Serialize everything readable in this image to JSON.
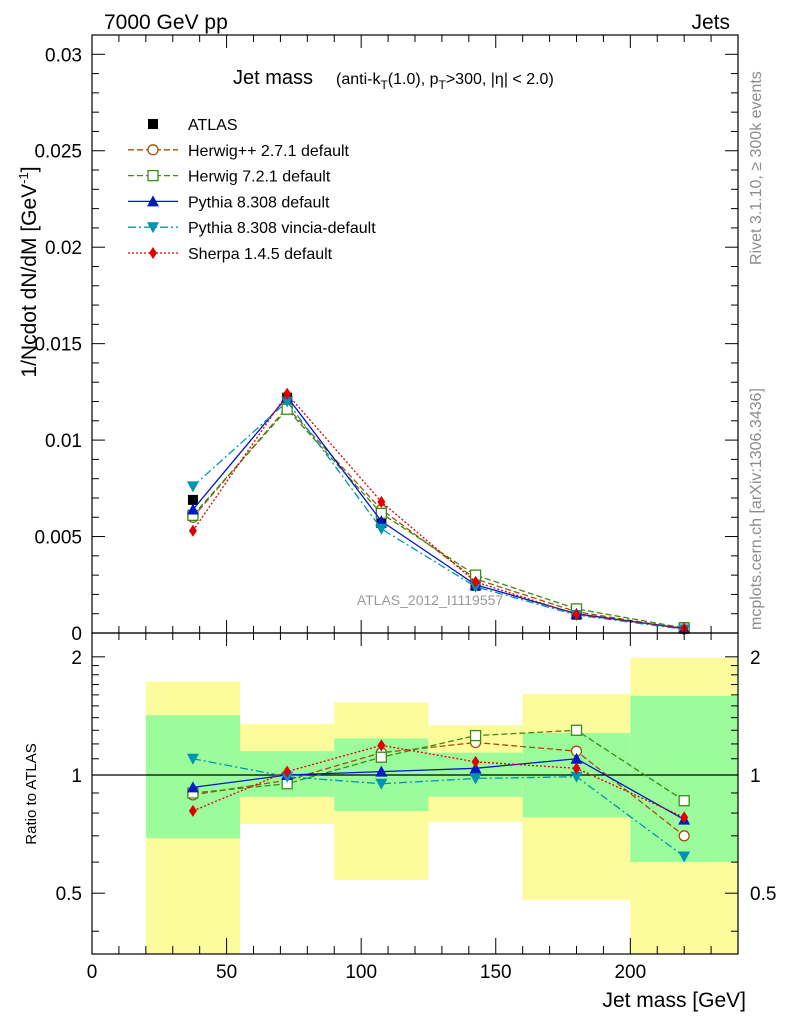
{
  "header": {
    "left": "7000 GeV pp",
    "right": "Jets"
  },
  "plot_title": {
    "main": "Jet mass",
    "detail": "(anti-k_T(1.0), p_T>300, |η| < 2.0)"
  },
  "side_labels": {
    "rivet": "Rivet 3.1.10, ≥ 300k events",
    "mcplots": "mcplots.cern.ch [arXiv:1306.3436]"
  },
  "watermark": "ATLAS_2012_I1119557",
  "colors": {
    "atlas": "#000000",
    "herwigpp": "#a0520a",
    "herwig7": "#3a8c12",
    "pythia": "#0018c8",
    "vincia": "#0094b4",
    "sherpa": "#e00000",
    "band_inner": "#9cfc9c",
    "band_outer": "#fcfc9c"
  },
  "chart_data": [
    {
      "type": "line",
      "panel": "main",
      "ylabel": "1/Ncdot dN/dM [GeV^-1]",
      "xlim": [
        0,
        240
      ],
      "ylim": [
        0,
        0.031
      ],
      "yticks": [
        0.005,
        0.01,
        0.015,
        0.02,
        0.025,
        0.03
      ],
      "ytick_labels": [
        "0.005",
        "0.01",
        "0.015",
        "0.02",
        "0.025",
        "0.03"
      ],
      "y_zero_label": "0",
      "legend_position": "top-left",
      "x": [
        37.5,
        72.5,
        107.5,
        142.5,
        180,
        220
      ],
      "series": [
        {
          "key": "atlas",
          "name": "ATLAS",
          "marker": "square",
          "line": "none",
          "values": [
            0.0069,
            0.0122,
            0.0057,
            0.00245,
            0.00095,
            0.0003
          ]
        },
        {
          "key": "herwigpp",
          "name": "Herwig++ 2.7.1 default",
          "marker": "circle-open",
          "line": "dashed",
          "values": [
            0.006,
            0.0117,
            0.0064,
            0.0028,
            0.0011,
            0.00021
          ]
        },
        {
          "key": "herwig7",
          "name": "Herwig 7.2.1 default",
          "marker": "square-open",
          "line": "dashed",
          "values": [
            0.0061,
            0.0116,
            0.0062,
            0.003,
            0.00125,
            0.00026
          ]
        },
        {
          "key": "pythia",
          "name": "Pythia 8.308 default",
          "marker": "triangle-up",
          "line": "solid",
          "values": [
            0.0064,
            0.01225,
            0.0058,
            0.0025,
            0.001,
            0.00023
          ]
        },
        {
          "key": "vincia",
          "name": "Pythia 8.308 vincia-default",
          "marker": "triangle-down",
          "line": "dashdot",
          "values": [
            0.0076,
            0.012,
            0.0054,
            0.0024,
            0.00093,
            0.00019
          ]
        },
        {
          "key": "sherpa",
          "name": "Sherpa 1.4.5 default",
          "marker": "diamond",
          "line": "dotted",
          "values": [
            0.0053,
            0.0124,
            0.0068,
            0.00265,
            0.00097,
            0.00023
          ]
        }
      ]
    },
    {
      "type": "line",
      "panel": "ratio",
      "ylabel": "Ratio to ATLAS",
      "xlabel": "Jet mass [GeV]",
      "xlim": [
        0,
        240
      ],
      "ylim": [
        0.35,
        2.3
      ],
      "yscale": "log",
      "yticks": [
        0.5,
        1,
        2
      ],
      "ytick_labels": [
        "0.5",
        "1",
        "2"
      ],
      "xticks": [
        0,
        50,
        100,
        150,
        200
      ],
      "xtick_labels": [
        "0",
        "50",
        "100",
        "150",
        "200"
      ],
      "bins": [
        [
          20,
          55
        ],
        [
          55,
          90
        ],
        [
          90,
          125
        ],
        [
          125,
          160
        ],
        [
          160,
          200
        ],
        [
          200,
          240
        ]
      ],
      "band_inner": [
        [
          0.69,
          1.42
        ],
        [
          0.88,
          1.15
        ],
        [
          0.81,
          1.24
        ],
        [
          0.88,
          1.14
        ],
        [
          0.78,
          1.28
        ],
        [
          0.6,
          1.59
        ]
      ],
      "band_outer": [
        [
          0.35,
          1.73
        ],
        [
          0.75,
          1.35
        ],
        [
          0.54,
          1.53
        ],
        [
          0.76,
          1.34
        ],
        [
          0.48,
          1.61
        ],
        [
          0.35,
          1.99
        ]
      ],
      "x": [
        37.5,
        72.5,
        107.5,
        142.5,
        180,
        220
      ],
      "series": [
        {
          "key": "herwigpp",
          "name": "Herwig++ 2.7.1 default",
          "values": [
            0.89,
            0.97,
            1.14,
            1.21,
            1.15,
            0.7
          ]
        },
        {
          "key": "herwig7",
          "name": "Herwig 7.2.1 default",
          "values": [
            0.9,
            0.95,
            1.11,
            1.26,
            1.3,
            0.86
          ]
        },
        {
          "key": "pythia",
          "name": "Pythia 8.308 default",
          "values": [
            0.93,
            1.0,
            1.02,
            1.04,
            1.1,
            0.77
          ]
        },
        {
          "key": "vincia",
          "name": "Pythia 8.308 vincia-default",
          "values": [
            1.1,
            0.99,
            0.95,
            0.98,
            0.99,
            0.62
          ]
        },
        {
          "key": "sherpa",
          "name": "Sherpa 1.4.5 default",
          "values": [
            0.81,
            1.02,
            1.19,
            1.08,
            1.04,
            0.78
          ]
        }
      ]
    }
  ]
}
